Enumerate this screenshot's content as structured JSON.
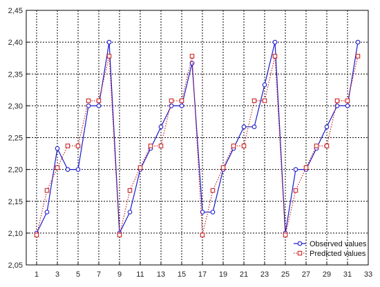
{
  "chart_data": {
    "type": "line",
    "title": "",
    "xlabel": "",
    "ylabel": "",
    "x": [
      1,
      2,
      3,
      4,
      5,
      6,
      7,
      8,
      9,
      10,
      11,
      12,
      13,
      14,
      15,
      16,
      17,
      18,
      19,
      20,
      21,
      22,
      23,
      24,
      25,
      26,
      27,
      28,
      29,
      30,
      31,
      32
    ],
    "xlim": [
      0,
      33
    ],
    "ylim": [
      2.05,
      2.45
    ],
    "x_ticks": [
      "1",
      "3",
      "5",
      "7",
      "9",
      "11",
      "13",
      "15",
      "17",
      "19",
      "21",
      "23",
      "25",
      "27",
      "29",
      "31",
      "33"
    ],
    "y_ticks": [
      "2,05",
      "2,10",
      "2,15",
      "2,20",
      "2,25",
      "2,30",
      "2,35",
      "2,40",
      "2,45"
    ],
    "grid": true,
    "legend_position": "bottom-right",
    "series": [
      {
        "name": "Observed values",
        "color": "#1a1acc",
        "style": "solid",
        "marker": "circle",
        "values": [
          2.1,
          2.133,
          2.233,
          2.2,
          2.2,
          2.3,
          2.3,
          2.4,
          2.1,
          2.133,
          2.2,
          2.233,
          2.267,
          2.3,
          2.3,
          2.367,
          2.133,
          2.133,
          2.2,
          2.233,
          2.267,
          2.267,
          2.333,
          2.4,
          2.1,
          2.2,
          2.2,
          2.233,
          2.267,
          2.3,
          2.3,
          2.4
        ]
      },
      {
        "name": "Predicted values",
        "color": "#cc2222",
        "style": "dotted",
        "marker": "square",
        "values": [
          2.097,
          2.167,
          2.203,
          2.237,
          2.237,
          2.308,
          2.308,
          2.378,
          2.097,
          2.167,
          2.203,
          2.237,
          2.237,
          2.308,
          2.308,
          2.378,
          2.097,
          2.167,
          2.203,
          2.237,
          2.237,
          2.308,
          2.308,
          2.378,
          2.097,
          2.167,
          2.203,
          2.237,
          2.237,
          2.308,
          2.308,
          2.378
        ]
      }
    ]
  }
}
